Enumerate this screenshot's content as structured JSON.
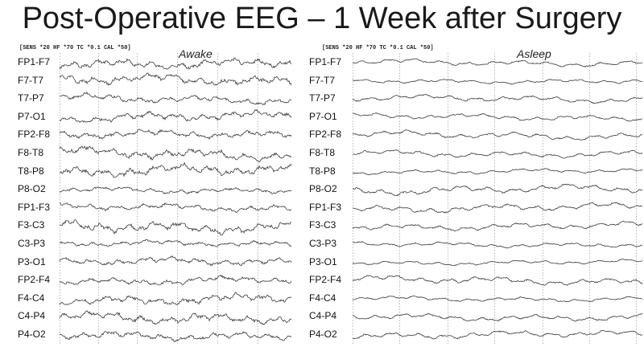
{
  "title": "Post-Operative EEG – 1 Week after Surgery",
  "channels": [
    "FP1-F7",
    "F7-T7",
    "T7-P7",
    "P7-O1",
    "FP2-F8",
    "F8-T8",
    "T8-P8",
    "P8-O2",
    "FP1-F3",
    "F3-C3",
    "C3-P3",
    "P3-O1",
    "FP2-F4",
    "F4-C4",
    "C4-P4",
    "P4-O2"
  ],
  "panels": {
    "awake": {
      "settings": "[SENS *20  HF *70  TC *0.1  CAL *50]",
      "state": "Awake"
    },
    "asleep": {
      "settings": "[SENS *20  HF *70  TC *0.1  CAL *50]",
      "state": "Asleep"
    }
  },
  "colors": {
    "trace": "#3a3a3a",
    "grid": "#9a9a9a",
    "text": "#111111"
  }
}
